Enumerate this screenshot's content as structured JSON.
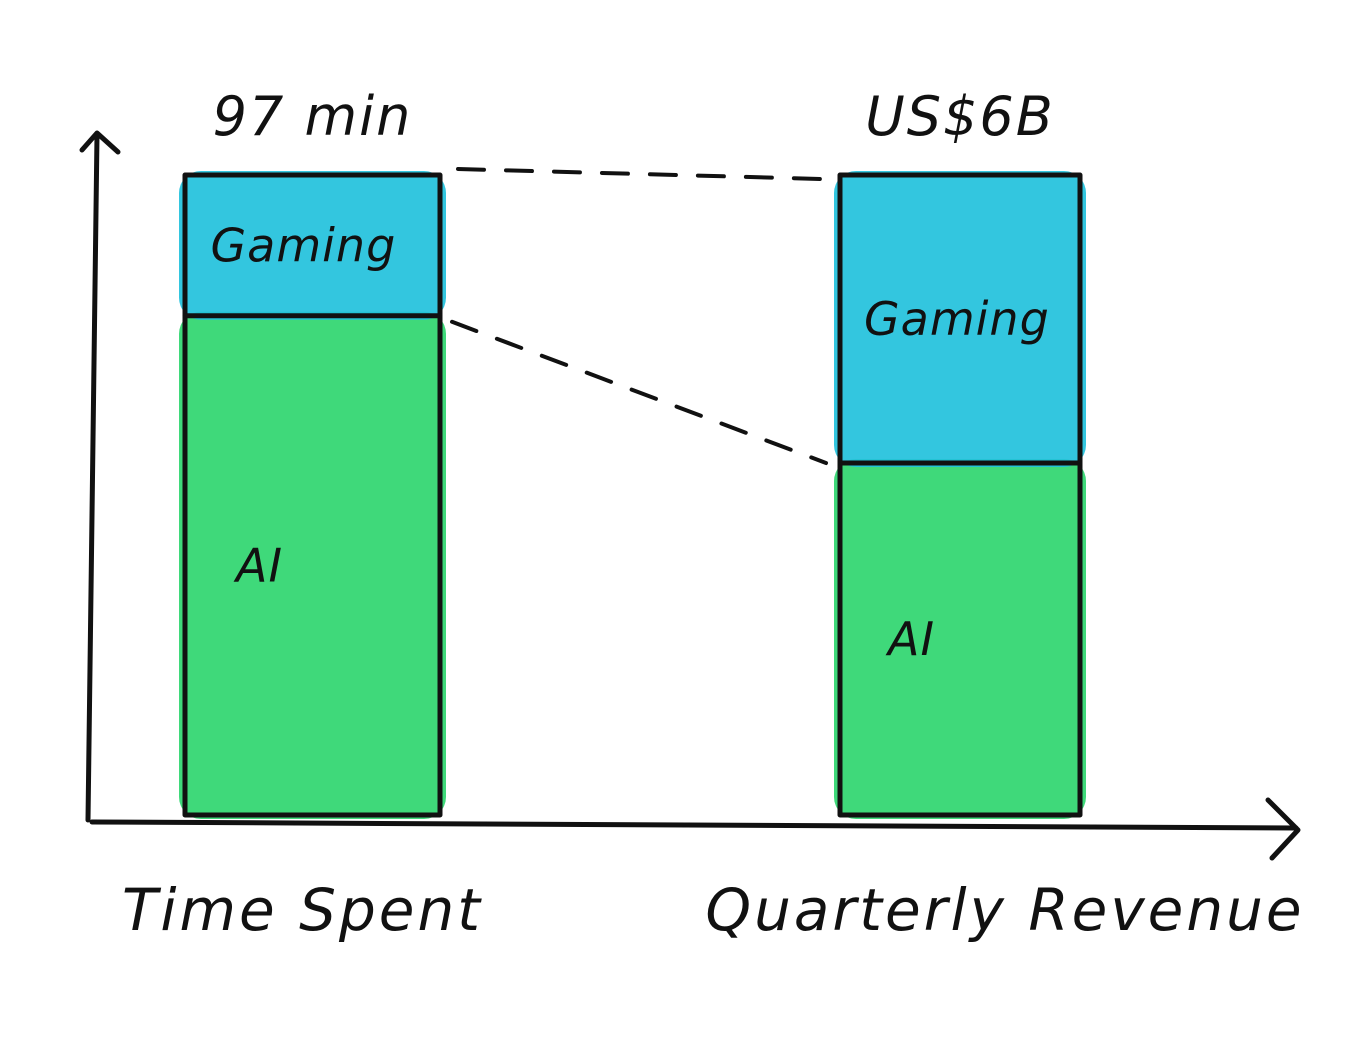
{
  "chart_data": {
    "type": "bar",
    "stacked": true,
    "categories": [
      "Time Spent",
      "Quarterly Revenue"
    ],
    "top_labels": [
      "97 min",
      "US$6B"
    ],
    "series": [
      {
        "name": "AI",
        "values": [
          78,
          55
        ]
      },
      {
        "name": "Gaming",
        "values": [
          22,
          45
        ]
      }
    ],
    "segment_labels": {
      "AI": [
        "AI",
        "AI"
      ],
      "Gaming": [
        "Gaming",
        "Gaming"
      ]
    },
    "ylim": [
      0,
      100
    ],
    "grid": false,
    "legend": "none"
  },
  "colors": {
    "AI": "#2fd66f",
    "Gaming": "#22c1dc",
    "ink": "#111111"
  }
}
